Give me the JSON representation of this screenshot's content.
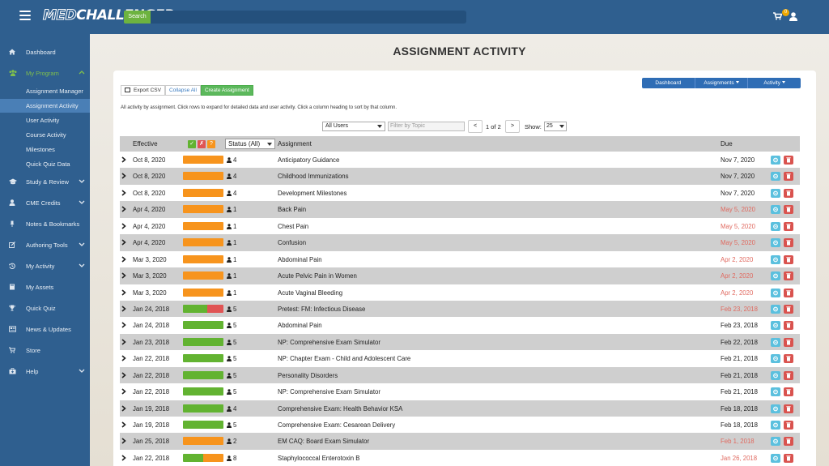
{
  "header": {
    "logo_prefix": "MED",
    "logo_suffix": "CHALLENGER",
    "search_label": "Search",
    "cart_count": "0"
  },
  "sidebar": {
    "items": [
      {
        "label": "Dashboard",
        "icon": "home-icon"
      },
      {
        "label": "My Program",
        "icon": "group-icon"
      },
      {
        "label": "Study & Review",
        "icon": "graduation-cap-icon"
      },
      {
        "label": "CME Credits",
        "icon": "user-icon"
      },
      {
        "label": "Notes & Bookmarks",
        "icon": "pin-icon"
      },
      {
        "label": "Authoring Tools",
        "icon": "edit-icon"
      },
      {
        "label": "My Activity",
        "icon": "history-icon"
      },
      {
        "label": "My Assets",
        "icon": "book-icon"
      },
      {
        "label": "Quick Quiz",
        "icon": "trophy-icon"
      },
      {
        "label": "News & Updates",
        "icon": "newspaper-icon"
      },
      {
        "label": "Store",
        "icon": "cart-icon"
      },
      {
        "label": "Help",
        "icon": "medkit-icon"
      }
    ],
    "subitems": [
      {
        "label": "Assignment Manager"
      },
      {
        "label": "Assignment Activity"
      },
      {
        "label": "User Activity"
      },
      {
        "label": "Course Activity"
      },
      {
        "label": "Milestones"
      },
      {
        "label": "Quick Quiz Data"
      }
    ]
  },
  "page": {
    "title": "ASSIGNMENT ACTIVITY",
    "description": "All activity by assignment. Click rows to expand for detailed data and user activity. Click a column heading to sort by that column."
  },
  "toolbar": {
    "export_label": "Export CSV",
    "collapse_label": "Collapse All",
    "create_label": "Create Assignment",
    "nav_dashboard": "Dashboard",
    "nav_assignments": "Assignments",
    "nav_activity": "Activity"
  },
  "filters": {
    "users_value": "All Users",
    "topic_placeholder": "Filter by Topic",
    "prev": "<",
    "page_label": "1 of 2",
    "next": ">",
    "show_label": "Show:",
    "show_value": "25"
  },
  "table": {
    "headers": {
      "effective": "Effective",
      "status": "Status (All)",
      "assignment": "Assignment",
      "due": "Due"
    },
    "status_icon_symbols": [
      "✓",
      "✗",
      "?"
    ],
    "colors": {
      "orange": "#f7941d",
      "green": "#62b331",
      "red": "#e05454",
      "due_red": "#e06a60"
    },
    "rows": [
      {
        "effective": "Oct 8, 2020",
        "users": "4",
        "assignment": "Anticipatory Guidance",
        "due": "Nov 7, 2020",
        "due_red": false,
        "green": 0,
        "red": 0
      },
      {
        "effective": "Oct 8, 2020",
        "users": "4",
        "assignment": "Childhood Immunizations",
        "due": "Nov 7, 2020",
        "due_red": false,
        "green": 0,
        "red": 0
      },
      {
        "effective": "Oct 8, 2020",
        "users": "4",
        "assignment": "Development Milestones",
        "due": "Nov 7, 2020",
        "due_red": false,
        "green": 0,
        "red": 0
      },
      {
        "effective": "Apr 4, 2020",
        "users": "1",
        "assignment": "Back Pain",
        "due": "May 5, 2020",
        "due_red": true,
        "green": 0,
        "red": 0
      },
      {
        "effective": "Apr 4, 2020",
        "users": "1",
        "assignment": "Chest Pain",
        "due": "May 5, 2020",
        "due_red": true,
        "green": 0,
        "red": 0
      },
      {
        "effective": "Apr 4, 2020",
        "users": "1",
        "assignment": "Confusion",
        "due": "May 5, 2020",
        "due_red": true,
        "green": 0,
        "red": 0
      },
      {
        "effective": "Mar 3, 2020",
        "users": "1",
        "assignment": "Abdominal Pain",
        "due": "Apr 2, 2020",
        "due_red": true,
        "green": 0,
        "red": 0
      },
      {
        "effective": "Mar 3, 2020",
        "users": "1",
        "assignment": "Acute Pelvic Pain in Women",
        "due": "Apr 2, 2020",
        "due_red": true,
        "green": 0,
        "red": 0
      },
      {
        "effective": "Mar 3, 2020",
        "users": "1",
        "assignment": "Acute Vaginal Bleeding",
        "due": "Apr 2, 2020",
        "due_red": true,
        "green": 0,
        "red": 0
      },
      {
        "effective": "Jan 24, 2018",
        "users": "5",
        "assignment": "Pretest: FM: Infectious Disease",
        "due": "Feb 23, 2018",
        "due_red": true,
        "green": 0.6,
        "red": 0.4
      },
      {
        "effective": "Jan 24, 2018",
        "users": "5",
        "assignment": "Abdominal Pain",
        "due": "Feb 23, 2018",
        "due_red": false,
        "green": 1,
        "red": 0
      },
      {
        "effective": "Jan 23, 2018",
        "users": "5",
        "assignment": "NP: Comprehensive Exam Simulator",
        "due": "Feb 22, 2018",
        "due_red": false,
        "green": 1,
        "red": 0
      },
      {
        "effective": "Jan 22, 2018",
        "users": "5",
        "assignment": "NP: Chapter Exam - Child and Adolescent Care",
        "due": "Feb 21, 2018",
        "due_red": false,
        "green": 1,
        "red": 0
      },
      {
        "effective": "Jan 22, 2018",
        "users": "5",
        "assignment": "Personality Disorders",
        "due": "Feb 21, 2018",
        "due_red": false,
        "green": 1,
        "red": 0
      },
      {
        "effective": "Jan 22, 2018",
        "users": "5",
        "assignment": "NP: Comprehensive Exam Simulator",
        "due": "Feb 21, 2018",
        "due_red": false,
        "green": 1,
        "red": 0
      },
      {
        "effective": "Jan 19, 2018",
        "users": "4",
        "assignment": "Comprehensive Exam: Health Behavior KSA",
        "due": "Feb 18, 2018",
        "due_red": false,
        "green": 1,
        "red": 0
      },
      {
        "effective": "Jan 19, 2018",
        "users": "5",
        "assignment": "Comprehensive Exam: Cesarean Delivery",
        "due": "Feb 18, 2018",
        "due_red": false,
        "green": 1,
        "red": 0
      },
      {
        "effective": "Jan 25, 2018",
        "users": "2",
        "assignment": "EM CAQ: Board Exam Simulator",
        "due": "Feb 1, 2018",
        "due_red": true,
        "green": 0,
        "red": 0
      },
      {
        "effective": "Jan 22, 2018",
        "users": "8",
        "assignment": "Staphylococcal Enterotoxin B",
        "due": "Jan 26, 2018",
        "due_red": true,
        "green": 0.5,
        "red": 0
      }
    ]
  }
}
